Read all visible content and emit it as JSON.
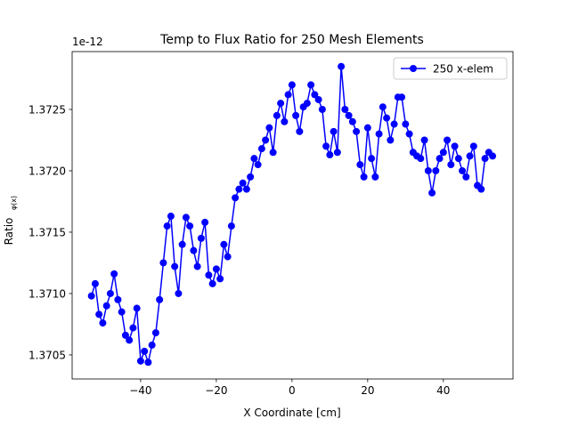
{
  "chart_data": {
    "type": "line",
    "title": "Temp to Flux Ratio for 250 Mesh Elements",
    "xlabel": "X Coordinate [cm]",
    "ylabel": "Ratio",
    "ylabel_denominator": "φ(x)",
    "y_offset_label": "1e-12",
    "legend": "upper right",
    "xlim": [
      -58.1,
      58.4
    ],
    "ylim": [
      1.370304,
      1.372971
    ],
    "xticks": [
      {
        "value": -40,
        "label": "−40"
      },
      {
        "value": -20,
        "label": "−20"
      },
      0,
      20,
      40
    ],
    "yticks": [
      1.3705,
      {
        "value": 1.371,
        "label": "1.3710"
      },
      1.3715,
      {
        "value": 1.372,
        "label": "1.3720"
      },
      1.3725
    ],
    "series": [
      {
        "name": "250 x-elem",
        "color": "#0000ff",
        "x": [
          -53,
          -52,
          -51,
          -50,
          -49,
          -48,
          -47,
          -46,
          -45,
          -44,
          -43,
          -42,
          -41,
          -40,
          -39,
          -38,
          -37,
          -36,
          -35,
          -34,
          -33,
          -32,
          -31,
          -30,
          -29,
          -28,
          -27,
          -26,
          -25,
          -24,
          -23,
          -22,
          -21,
          -20,
          -19,
          -18,
          -17,
          -16,
          -15,
          -14,
          -13,
          -12,
          -11,
          -10,
          -9,
          -8,
          -7,
          -6,
          -5,
          -4,
          -3,
          -2,
          -1,
          0,
          1,
          2,
          3,
          4,
          5,
          6,
          7,
          8,
          9,
          10,
          11,
          12,
          13,
          14,
          15,
          16,
          17,
          18,
          19,
          20,
          21,
          22,
          23,
          24,
          25,
          26,
          27,
          28,
          29,
          30,
          31,
          32,
          33,
          34,
          35,
          36,
          37,
          38,
          39,
          40,
          41,
          42,
          43,
          44,
          45,
          46,
          47,
          48,
          49,
          50,
          51,
          52,
          53
        ],
        "values": [
          1.37098,
          1.37108,
          1.37083,
          1.37076,
          1.3709,
          1.371,
          1.37116,
          1.37095,
          1.37085,
          1.37066,
          1.37062,
          1.37072,
          1.37088,
          1.37045,
          1.37053,
          1.37044,
          1.37058,
          1.37068,
          1.37095,
          1.37125,
          1.37155,
          1.37163,
          1.37122,
          1.371,
          1.3714,
          1.37162,
          1.37155,
          1.37135,
          1.37122,
          1.37145,
          1.37158,
          1.37115,
          1.37108,
          1.3712,
          1.37112,
          1.3714,
          1.3713,
          1.37155,
          1.37178,
          1.37185,
          1.3719,
          1.37185,
          1.37195,
          1.3721,
          1.37205,
          1.37218,
          1.37225,
          1.37235,
          1.37215,
          1.37245,
          1.37255,
          1.3724,
          1.37262,
          1.3727,
          1.37245,
          1.37232,
          1.37252,
          1.37255,
          1.3727,
          1.37262,
          1.37258,
          1.3725,
          1.3722,
          1.37213,
          1.37232,
          1.37215,
          1.37285,
          1.3725,
          1.37245,
          1.3724,
          1.37232,
          1.37205,
          1.37195,
          1.37235,
          1.3721,
          1.37195,
          1.3723,
          1.37252,
          1.37243,
          1.37225,
          1.37238,
          1.3726,
          1.3726,
          1.37238,
          1.3723,
          1.37215,
          1.37212,
          1.3721,
          1.37225,
          1.372,
          1.37182,
          1.372,
          1.3721,
          1.37215,
          1.37225,
          1.37205,
          1.3722,
          1.3721,
          1.372,
          1.37195,
          1.37212,
          1.3722,
          1.37188,
          1.37185,
          1.3721,
          1.37215,
          1.37212
        ]
      }
    ]
  }
}
